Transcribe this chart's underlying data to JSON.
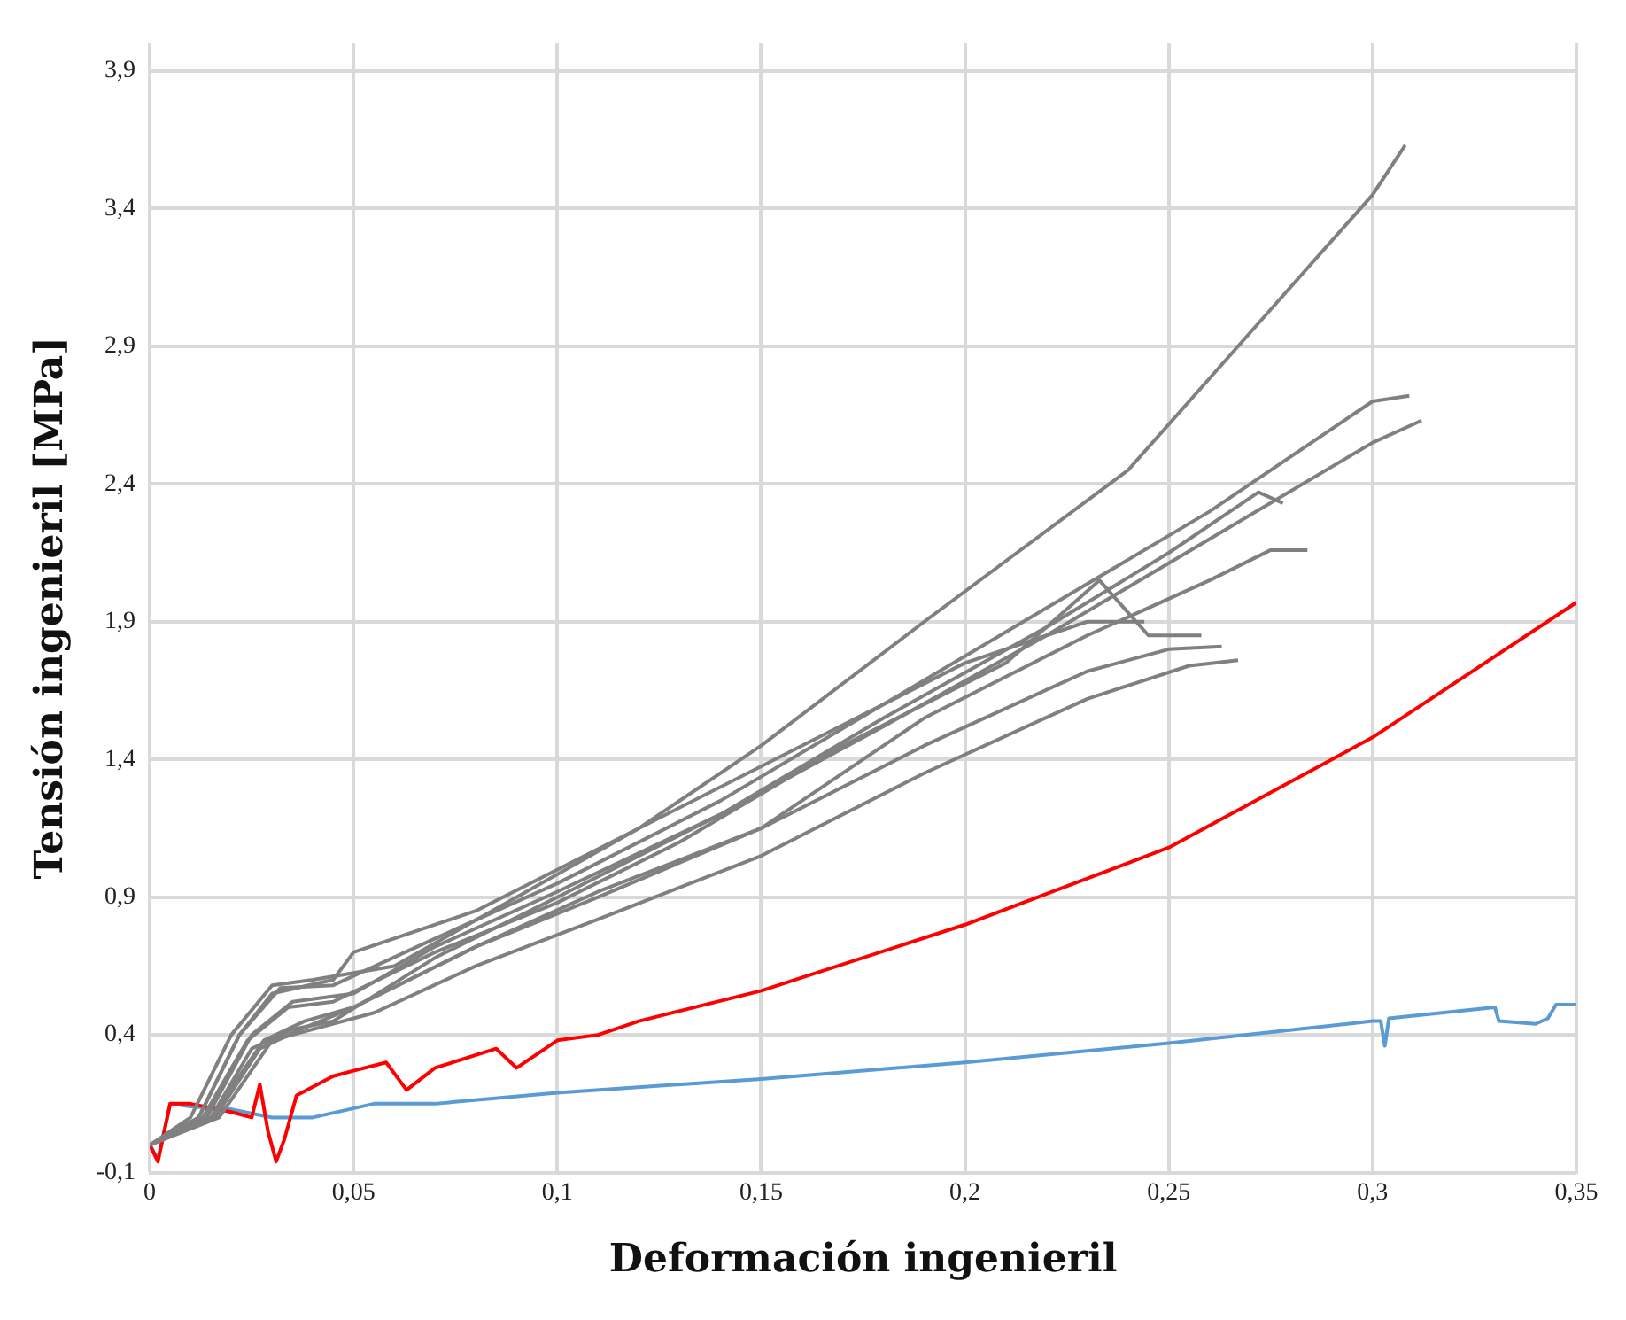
{
  "chart_data": {
    "type": "line",
    "xlabel": "Deformación ingenieril",
    "ylabel": "Tensión ingenieril [MPa]",
    "xlim": [
      0,
      0.35
    ],
    "ylim": [
      -0.1,
      4.0
    ],
    "xticks": [
      0,
      {
        "value": 0.05,
        "label": "0,05"
      },
      {
        "value": 0.1,
        "label": "0,1"
      },
      {
        "value": 0.15,
        "label": "0,15"
      },
      {
        "value": 0.2,
        "label": "0,2"
      },
      {
        "value": 0.25,
        "label": "0,25"
      },
      {
        "value": 0.3,
        "label": "0,3"
      },
      {
        "value": 0.35,
        "label": "0,35"
      }
    ],
    "yticks": [
      {
        "value": -0.1,
        "label": "-0,1"
      },
      {
        "value": 0.4,
        "label": "0,4"
      },
      {
        "value": 0.9,
        "label": "0,9"
      },
      {
        "value": 1.4,
        "label": "1,4"
      },
      {
        "value": 1.9,
        "label": "1,9"
      },
      {
        "value": 2.4,
        "label": "2,4"
      },
      {
        "value": 2.9,
        "label": "2,9"
      },
      {
        "value": 3.4,
        "label": "3,4"
      },
      {
        "value": 3.9,
        "label": "3,9"
      }
    ],
    "grid": true,
    "legend": false,
    "marker": "none",
    "line_style": "solid",
    "series": [
      {
        "color": "#808080",
        "x": [
          0,
          0.01,
          0.02,
          0.03,
          0.04,
          0.06,
          0.09,
          0.12,
          0.15,
          0.19,
          0.24,
          0.27,
          0.3,
          0.308
        ],
        "values": [
          0,
          0.1,
          0.4,
          0.58,
          0.6,
          0.65,
          0.9,
          1.15,
          1.45,
          1.9,
          2.45,
          2.95,
          3.45,
          3.63
        ]
      },
      {
        "color": "#808080",
        "x": [
          0,
          0.012,
          0.022,
          0.032,
          0.045,
          0.07,
          0.1,
          0.14,
          0.18,
          0.22,
          0.26,
          0.3,
          0.309
        ],
        "values": [
          0,
          0.1,
          0.4,
          0.57,
          0.58,
          0.75,
          0.95,
          1.25,
          1.6,
          1.95,
          2.3,
          2.7,
          2.72
        ]
      },
      {
        "color": "#808080",
        "x": [
          0,
          0.014,
          0.025,
          0.035,
          0.05,
          0.07,
          0.1,
          0.14,
          0.18,
          0.22,
          0.26,
          0.3,
          0.312
        ],
        "values": [
          0,
          0.1,
          0.4,
          0.52,
          0.55,
          0.72,
          0.92,
          1.2,
          1.52,
          1.85,
          2.2,
          2.55,
          2.63
        ]
      },
      {
        "color": "#808080",
        "x": [
          0,
          0.015,
          0.025,
          0.035,
          0.045,
          0.07,
          0.1,
          0.14,
          0.18,
          0.22,
          0.25,
          0.272,
          0.278
        ],
        "values": [
          0,
          0.1,
          0.35,
          0.42,
          0.45,
          0.68,
          0.9,
          1.2,
          1.55,
          1.88,
          2.15,
          2.37,
          2.33
        ]
      },
      {
        "color": "#808080",
        "x": [
          0,
          0.016,
          0.027,
          0.037,
          0.05,
          0.08,
          0.11,
          0.15,
          0.19,
          0.23,
          0.26,
          0.275,
          0.284
        ],
        "values": [
          0,
          0.1,
          0.35,
          0.42,
          0.5,
          0.72,
          0.92,
          1.15,
          1.55,
          1.85,
          2.05,
          2.16,
          2.16
        ]
      },
      {
        "color": "#808080",
        "x": [
          0,
          0.012,
          0.022,
          0.03,
          0.045,
          0.05,
          0.08,
          0.12,
          0.16,
          0.2,
          0.23,
          0.244
        ],
        "values": [
          0,
          0.1,
          0.4,
          0.55,
          0.6,
          0.7,
          0.85,
          1.15,
          1.45,
          1.75,
          1.9,
          1.9
        ]
      },
      {
        "color": "#808080",
        "x": [
          0,
          0.013,
          0.024,
          0.034,
          0.045,
          0.07,
          0.1,
          0.13,
          0.17,
          0.21,
          0.233,
          0.245,
          0.258
        ],
        "values": [
          0,
          0.1,
          0.38,
          0.5,
          0.52,
          0.7,
          0.88,
          1.1,
          1.45,
          1.75,
          2.05,
          1.85,
          1.85
        ]
      },
      {
        "color": "#808080",
        "x": [
          0,
          0.015,
          0.028,
          0.038,
          0.05,
          0.08,
          0.11,
          0.15,
          0.19,
          0.23,
          0.25,
          0.263
        ],
        "values": [
          0,
          0.1,
          0.38,
          0.45,
          0.5,
          0.72,
          0.9,
          1.15,
          1.45,
          1.72,
          1.8,
          1.81
        ]
      },
      {
        "color": "#808080",
        "x": [
          0,
          0.017,
          0.03,
          0.04,
          0.055,
          0.08,
          0.11,
          0.15,
          0.19,
          0.23,
          0.255,
          0.267
        ],
        "values": [
          0,
          0.1,
          0.38,
          0.42,
          0.48,
          0.65,
          0.82,
          1.05,
          1.35,
          1.62,
          1.74,
          1.76
        ]
      },
      {
        "color": "#ff0000",
        "x": [
          0,
          0.002,
          0.005,
          0.01,
          0.02,
          0.025,
          0.027,
          0.029,
          0.031,
          0.033,
          0.036,
          0.045,
          0.05,
          0.058,
          0.063,
          0.07,
          0.085,
          0.09,
          0.1,
          0.11,
          0.12,
          0.15,
          0.2,
          0.25,
          0.3,
          0.35
        ],
        "values": [
          0,
          -0.06,
          0.15,
          0.15,
          0.12,
          0.1,
          0.22,
          0.05,
          -0.06,
          0.02,
          0.18,
          0.25,
          0.27,
          0.3,
          0.2,
          0.28,
          0.35,
          0.28,
          0.38,
          0.4,
          0.45,
          0.56,
          0.8,
          1.08,
          1.48,
          1.97
        ]
      },
      {
        "color": "#5b9bd5",
        "x": [
          0,
          0.002,
          0.005,
          0.01,
          0.02,
          0.03,
          0.04,
          0.055,
          0.07,
          0.1,
          0.15,
          0.2,
          0.25,
          0.3,
          0.302,
          0.303,
          0.304,
          0.33,
          0.331,
          0.34,
          0.343,
          0.345,
          0.35
        ],
        "values": [
          0,
          -0.05,
          0.15,
          0.14,
          0.13,
          0.1,
          0.1,
          0.15,
          0.15,
          0.19,
          0.24,
          0.3,
          0.37,
          0.45,
          0.45,
          0.36,
          0.46,
          0.5,
          0.45,
          0.44,
          0.46,
          0.51,
          0.51
        ]
      }
    ]
  }
}
